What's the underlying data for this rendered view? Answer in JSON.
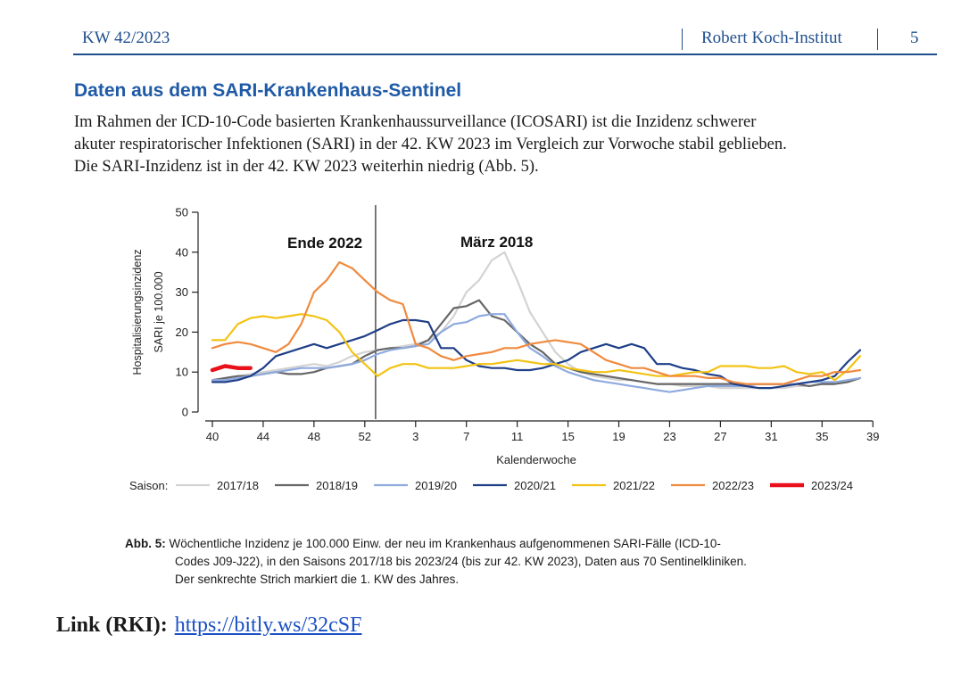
{
  "header": {
    "issue": "KW 42/2023",
    "institute": "Robert Koch-Institut",
    "page": "5"
  },
  "section_title": "Daten aus dem SARI-Krankenhaus-Sentinel",
  "body": {
    "line1": "Im Rahmen der ICD-10-Code basierten Krankenhaussurveillance (ICOSARI) ist die Inzidenz schwerer",
    "line2": "akuter respiratorischer Infektionen (SARI) in der 42. KW 2023 im Vergleich zur Vorwoche stabil geblieben.",
    "line3": "Die SARI-Inzidenz ist in der 42. KW 2023 weiterhin niedrig (Abb. 5)."
  },
  "caption": {
    "label": "Abb. 5:",
    "line1": "Wöchentliche Inzidenz je 100.000 Einw. der neu im Krankenhaus aufgenommenen SARI-Fälle (ICD-10-",
    "line2": "Codes J09-J22), in den Saisons 2017/18 bis 2023/24 (bis zur 42. KW 2023), Daten aus 70 Sentinelkliniken.",
    "line3": "Der senkrechte Strich markiert die 1. KW des Jahres."
  },
  "link": {
    "label": "Link (RKI):",
    "url": "https://bitly.ws/32cSF"
  },
  "chart_data": {
    "type": "line",
    "ylabel_line1": "Hospitalisierungsinzidenz",
    "ylabel_line2": "SARI je 100.000",
    "xlabel": "Kalenderwoche",
    "ylim": [
      0,
      50
    ],
    "yticks": [
      0,
      10,
      20,
      30,
      40,
      50
    ],
    "xticks": [
      "40",
      "44",
      "48",
      "52",
      "3",
      "7",
      "11",
      "15",
      "19",
      "23",
      "27",
      "31",
      "35",
      "39"
    ],
    "year_start_marker": "KW 1",
    "annotations": [
      "Ende 2022",
      "März 2018"
    ],
    "legend_title": "Saison:",
    "colors": {
      "2017/18": "#d3d3d3",
      "2018/19": "#666666",
      "2019/20": "#8eaadf",
      "2020/21": "#1f3f87",
      "2021/22": "#f2c314",
      "2022/23": "#f08a3e",
      "2023/24": "#e8101a"
    },
    "series": [
      {
        "name": "2017/18",
        "values": [
          8,
          8.5,
          9,
          9.5,
          10,
          10.5,
          11,
          11.5,
          12,
          11.5,
          12.5,
          14,
          15,
          15.5,
          16,
          16.5,
          17,
          18,
          20,
          24,
          30,
          33,
          38,
          40,
          33,
          25,
          20,
          15,
          12,
          10,
          9,
          8.5,
          8,
          8,
          7.5,
          7,
          7,
          6.5,
          6.5,
          6.5,
          6,
          6,
          6,
          6,
          6,
          6,
          6.5,
          6.5,
          7,
          7,
          7.5,
          8.5
        ]
      },
      {
        "name": "2018/19",
        "values": [
          8,
          8.5,
          9,
          9,
          9.5,
          10,
          9.5,
          9.5,
          10,
          11,
          11.5,
          12,
          14,
          15.5,
          16,
          16,
          16.5,
          18,
          22,
          26,
          26.5,
          28,
          24,
          23,
          20,
          17,
          15,
          12,
          11,
          10,
          9.5,
          9,
          8.5,
          8,
          7.5,
          7,
          7,
          7,
          7,
          7,
          7,
          7,
          7,
          7,
          7,
          7,
          7,
          6.5,
          7,
          7,
          7.5,
          8.5
        ]
      },
      {
        "name": "2019/20",
        "values": [
          8,
          8,
          8.5,
          9,
          9.5,
          10,
          10.5,
          11,
          11,
          11,
          11.5,
          12,
          13,
          14.5,
          15.5,
          16,
          16.5,
          17,
          20,
          22,
          22.5,
          24,
          24.5,
          24.5,
          20,
          16,
          14,
          11.5,
          10,
          9,
          8,
          7.5,
          7,
          6.5,
          6,
          5.5,
          5,
          5.5,
          6,
          6.5,
          6.5,
          6.5,
          6.5,
          7,
          7,
          7,
          7,
          7.5,
          7.5,
          7.5,
          8,
          8.5
        ]
      },
      {
        "name": "2020/21",
        "values": [
          7.5,
          7.5,
          8,
          9,
          11,
          14,
          15,
          16,
          17,
          16,
          17,
          18,
          19,
          20.5,
          22,
          23,
          23,
          22.5,
          16,
          16,
          13,
          11.5,
          11,
          11,
          10.5,
          10.5,
          11,
          12,
          13,
          15,
          16,
          17,
          16,
          17,
          16,
          12,
          12,
          11,
          10.5,
          9.5,
          9,
          7,
          6.5,
          6,
          6,
          6.5,
          7,
          7.5,
          8,
          9,
          12.5,
          15.5
        ]
      },
      {
        "name": "2021/22",
        "values": [
          18,
          18,
          22,
          23.5,
          24,
          23.5,
          24,
          24.5,
          24,
          23,
          20,
          15,
          12,
          9,
          11,
          12,
          12,
          11,
          11,
          11,
          11.5,
          12,
          12,
          12.5,
          13,
          12.5,
          12,
          12,
          11,
          10.5,
          10,
          10,
          10.5,
          10,
          9.5,
          9,
          9,
          9.5,
          10,
          10,
          11.5,
          11.5,
          11.5,
          11,
          11,
          11.5,
          10,
          9.5,
          10,
          8,
          10.5,
          14
        ]
      },
      {
        "name": "2022/23",
        "values": [
          16,
          17,
          17.5,
          17,
          16,
          15,
          17,
          22,
          30,
          33,
          37.5,
          36,
          33,
          30,
          28,
          27,
          17,
          16,
          14,
          13,
          14,
          14.5,
          15,
          16,
          16,
          17,
          17.5,
          18,
          17.5,
          17,
          15,
          13,
          12,
          11,
          11,
          10,
          9,
          9,
          9,
          8.5,
          8.5,
          7.5,
          7,
          7,
          7,
          7,
          8,
          9,
          9,
          10,
          10,
          10.5
        ]
      },
      {
        "name": "2023/24",
        "values": [
          10.5,
          11.5,
          11,
          11
        ]
      }
    ]
  }
}
